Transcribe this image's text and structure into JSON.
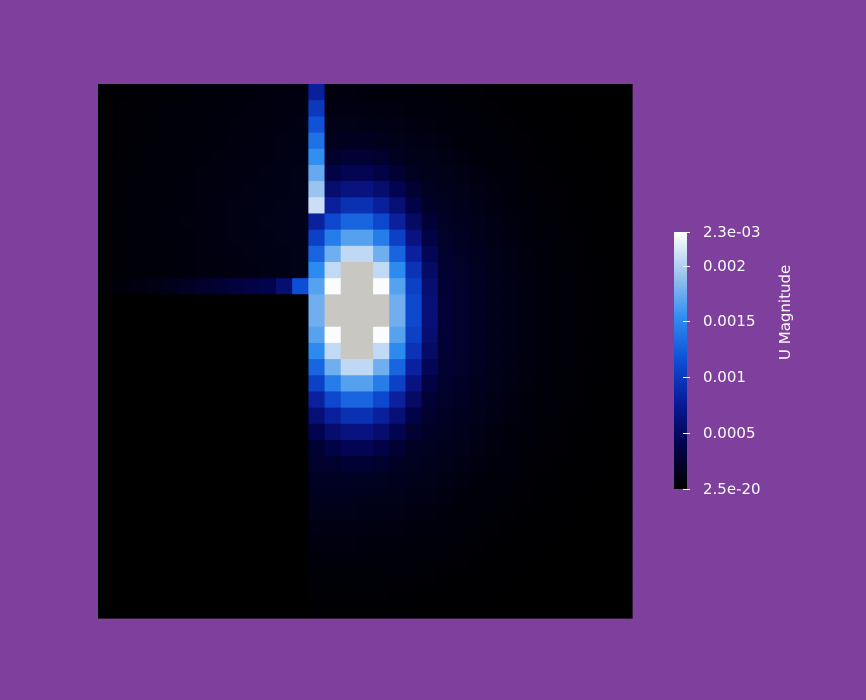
{
  "scalar_bar": {
    "title": "U Magnitude",
    "ticks": [
      {
        "label": "2.3e-03",
        "value": 0.0023
      },
      {
        "label": "0.002",
        "value": 0.002
      },
      {
        "label": "0.0015",
        "value": 0.0015
      },
      {
        "label": "0.001",
        "value": 0.001
      },
      {
        "label": "0.0005",
        "value": 0.0005
      },
      {
        "label": "2.5e-20",
        "value": 2.5e-20
      }
    ],
    "range": [
      2.5e-20,
      0.0023
    ],
    "colormap": [
      "#000000",
      "#02024a",
      "#0a1a96",
      "#0d4ed6",
      "#2f8ef0",
      "#9cc4ee",
      "#ffffff"
    ]
  },
  "colors": {
    "background": "#7f3f9c",
    "saturated": "#c9c7c2",
    "domain_base": "#010208"
  },
  "field": {
    "cols": 33,
    "rows": 33,
    "step_corner": [
      13,
      13
    ],
    "saturated_threshold": 0.0023
  }
}
